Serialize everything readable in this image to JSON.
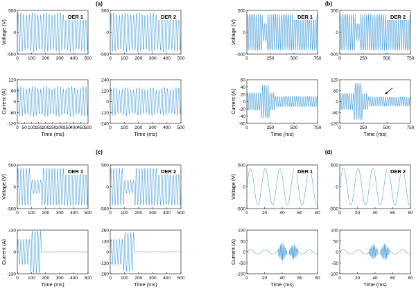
{
  "figure": {
    "panels": [
      {
        "label": "(a)"
      },
      {
        "label": "(b)"
      },
      {
        "label": "(c)"
      },
      {
        "label": "(d)"
      }
    ]
  },
  "chart_data": [
    {
      "type": "line",
      "panel": "(a)",
      "title": "DER 1",
      "xlabel": "",
      "ylabel": "Voltage (V)",
      "xlim": [
        0,
        500
      ],
      "ylim": [
        -500,
        500
      ],
      "x_ticks": [
        "0",
        "100",
        "200",
        "300",
        "400",
        "500"
      ],
      "y_ticks": [
        "500",
        "0",
        "-500"
      ],
      "series": [
        {
          "color": "#4a9fd8",
          "waveform": {
            "kind": "sine",
            "amplitude": 420,
            "period": 20,
            "x_start": 0,
            "x_end": 500,
            "mod_amplitude": 30,
            "mod_period": 90
          }
        }
      ]
    },
    {
      "type": "line",
      "panel": "(a)",
      "title": "DER 2",
      "xlabel": "",
      "ylabel": "",
      "xlim": [
        0,
        500
      ],
      "ylim": [
        -500,
        500
      ],
      "x_ticks": [
        "0",
        "100",
        "200",
        "300",
        "400",
        "500"
      ],
      "y_ticks": [
        "500",
        "0",
        "-500"
      ],
      "series": [
        {
          "color": "#4a9fd8",
          "waveform": {
            "kind": "sine",
            "amplitude": 420,
            "period": 20,
            "x_start": 0,
            "x_end": 500,
            "mod_amplitude": 30,
            "mod_period": 90
          }
        }
      ]
    },
    {
      "type": "line",
      "panel": "(a)",
      "title": "",
      "xlabel": "Time (ms)",
      "ylabel": "Current (A)",
      "xlim": [
        0,
        500
      ],
      "ylim": [
        -120,
        120
      ],
      "x_ticks": [
        "0",
        "50",
        "100",
        "150",
        "200",
        "250",
        "300",
        "350",
        "400",
        "450",
        "500"
      ],
      "y_ticks": [
        "120",
        "60",
        "0",
        "-60",
        "-120"
      ],
      "series": [
        {
          "color": "#4a9fd8",
          "waveform": {
            "kind": "sine",
            "amplitude": 75,
            "period": 20,
            "x_start": 0,
            "x_end": 500,
            "mod_amplitude": 8,
            "mod_period": 90
          }
        }
      ]
    },
    {
      "type": "line",
      "panel": "(a)",
      "title": "",
      "xlabel": "Time (ms)",
      "ylabel": "",
      "xlim": [
        0,
        500
      ],
      "ylim": [
        -240,
        240
      ],
      "x_ticks": [
        "0",
        "100",
        "200",
        "300",
        "400",
        "500"
      ],
      "y_ticks": [
        "240",
        "120",
        "0",
        "-120",
        "-240"
      ],
      "series": [
        {
          "color": "#4a9fd8",
          "waveform": {
            "kind": "sine",
            "amplitude": 140,
            "period": 20,
            "x_start": 0,
            "x_end": 500,
            "mod_amplitude": 15,
            "mod_period": 90
          }
        }
      ]
    },
    {
      "type": "line",
      "panel": "(b)",
      "title": "DER 1",
      "xlabel": "",
      "ylabel": "Voltage (V)",
      "xlim": [
        0,
        750
      ],
      "ylim": [
        -500,
        500
      ],
      "x_ticks": [
        "0",
        "250",
        "500",
        "750"
      ],
      "y_ticks": [
        "500",
        "0",
        "-500"
      ],
      "series": [
        {
          "color": "#4a9fd8",
          "waveform": {
            "kind": "sine",
            "amplitude": 410,
            "period": 20,
            "x_start": 0,
            "x_end": 750,
            "dip_start": 165,
            "dip_end": 215,
            "dip_amplitude": 200
          }
        }
      ]
    },
    {
      "type": "line",
      "panel": "(b)",
      "title": "DER 2",
      "xlabel": "",
      "ylabel": "",
      "xlim": [
        0,
        750
      ],
      "ylim": [
        -500,
        500
      ],
      "x_ticks": [
        "0",
        "250",
        "500",
        "750"
      ],
      "y_ticks": [
        "500",
        "0",
        "-500"
      ],
      "series": [
        {
          "color": "#4a9fd8",
          "waveform": {
            "kind": "sine",
            "amplitude": 410,
            "period": 20,
            "x_start": 0,
            "x_end": 750,
            "dip_start": 165,
            "dip_end": 215,
            "dip_amplitude": 200
          }
        }
      ]
    },
    {
      "type": "line",
      "panel": "(b)",
      "title": "",
      "xlabel": "Time (ms)",
      "ylabel": "Current (A)",
      "xlim": [
        0,
        750
      ],
      "ylim": [
        -60,
        60
      ],
      "x_ticks": [
        "0",
        "250",
        "500",
        "750"
      ],
      "y_ticks": [
        "60",
        "40",
        "20",
        "0",
        "-20",
        "-40",
        "-60"
      ],
      "series": [
        {
          "color": "#4a9fd8",
          "waveform": {
            "kind": "sine",
            "amplitude": 24,
            "period": 20,
            "x_start": 0,
            "x_end": 750,
            "burst_start": 150,
            "burst_end": 240,
            "burst_amplitude": 45,
            "late_amplitude": 14,
            "late_from": 300
          }
        }
      ]
    },
    {
      "type": "line",
      "panel": "(b)",
      "title": "",
      "xlabel": "Time (ms)",
      "ylabel": "",
      "xlim": [
        0,
        750
      ],
      "ylim": [
        -120,
        120
      ],
      "x_ticks": [
        "0",
        "250",
        "500",
        "750"
      ],
      "y_ticks": [
        "120",
        "60",
        "0",
        "-60",
        "-120"
      ],
      "arrow": {
        "from": [
          560,
          75
        ],
        "to": [
          480,
          40
        ]
      },
      "series": [
        {
          "color": "#4a9fd8",
          "waveform": {
            "kind": "sine",
            "amplitude": 45,
            "period": 20,
            "x_start": 0,
            "x_end": 750,
            "burst_start": 150,
            "burst_end": 240,
            "burst_amplitude": 100,
            "late_amplitude": 25,
            "late_from": 300
          }
        }
      ]
    },
    {
      "type": "line",
      "panel": "(c)",
      "title": "DER 1",
      "xlabel": "",
      "ylabel": "Voltage (V)",
      "xlim": [
        0,
        500
      ],
      "ylim": [
        -500,
        500
      ],
      "x_ticks": [
        "0",
        "100",
        "200",
        "300",
        "400",
        "500"
      ],
      "y_ticks": [
        "500",
        "0",
        "-500"
      ],
      "series": [
        {
          "color": "#4a9fd8",
          "waveform": {
            "kind": "sine",
            "amplitude": 420,
            "period": 20,
            "x_start": 0,
            "x_end": 500,
            "dip_start": 95,
            "dip_end": 170,
            "dip_amplitude": 150
          }
        }
      ]
    },
    {
      "type": "line",
      "panel": "(c)",
      "title": "DER 2",
      "xlabel": "",
      "ylabel": "",
      "xlim": [
        0,
        500
      ],
      "ylim": [
        -500,
        500
      ],
      "x_ticks": [
        "0",
        "100",
        "200",
        "300",
        "400",
        "500"
      ],
      "y_ticks": [
        "500",
        "0",
        "-500"
      ],
      "series": [
        {
          "color": "#4a9fd8",
          "waveform": {
            "kind": "sine",
            "amplitude": 420,
            "period": 20,
            "x_start": 0,
            "x_end": 500,
            "dip_start": 95,
            "dip_end": 170,
            "dip_amplitude": 150
          }
        }
      ]
    },
    {
      "type": "line",
      "panel": "(c)",
      "title": "",
      "xlabel": "Time (ms)",
      "ylabel": "Current (A)",
      "xlim": [
        0,
        500
      ],
      "ylim": [
        -130,
        130
      ],
      "x_ticks": [
        "0",
        "100",
        "200",
        "300",
        "400",
        "500"
      ],
      "y_ticks": [
        "130",
        "0",
        "-130"
      ],
      "series": [
        {
          "color": "#4a9fd8",
          "waveform": {
            "kind": "sine",
            "amplitude": 75,
            "period": 20,
            "x_start": 0,
            "x_end": 500,
            "burst_start": 95,
            "burst_end": 170,
            "burst_amplitude": 125,
            "late_amplitude": 1,
            "late_from": 170
          }
        }
      ]
    },
    {
      "type": "line",
      "panel": "(c)",
      "title": "",
      "xlabel": "Time (ms)",
      "ylabel": "",
      "xlim": [
        0,
        500
      ],
      "ylim": [
        -260,
        260
      ],
      "x_ticks": [
        "0",
        "100",
        "200",
        "300",
        "400",
        "500"
      ],
      "y_ticks": [
        "260",
        "130",
        "0",
        "-130",
        "-260"
      ],
      "series": [
        {
          "color": "#4a9fd8",
          "waveform": {
            "kind": "sine",
            "amplitude": 150,
            "period": 20,
            "x_start": 0,
            "x_end": 500,
            "burst_start": 95,
            "burst_end": 170,
            "burst_amplitude": 230,
            "late_amplitude": 2,
            "late_from": 170
          }
        }
      ]
    },
    {
      "type": "line",
      "panel": "(d)",
      "title": "DER 1",
      "xlabel": "",
      "ylabel": "Voltage (V)",
      "xlim": [
        0,
        80
      ],
      "ylim": [
        -500,
        500
      ],
      "x_ticks": [
        "0",
        "20",
        "40",
        "60",
        "80"
      ],
      "y_ticks": [
        "500",
        "0",
        "-500"
      ],
      "series": [
        {
          "color": "#4a9fd8",
          "waveform": {
            "kind": "sine",
            "amplitude": 420,
            "period": 16.67,
            "x_start": 0,
            "x_end": 80
          }
        }
      ]
    },
    {
      "type": "line",
      "panel": "(d)",
      "title": "DER 2",
      "xlabel": "",
      "ylabel": "",
      "xlim": [
        0,
        80
      ],
      "ylim": [
        -500,
        500
      ],
      "x_ticks": [
        "0",
        "20",
        "40",
        "60",
        "80"
      ],
      "y_ticks": [
        "500",
        "0",
        "-500"
      ],
      "series": [
        {
          "color": "#4a9fd8",
          "waveform": {
            "kind": "sine",
            "amplitude": 420,
            "period": 16.67,
            "x_start": 0,
            "x_end": 80
          }
        }
      ]
    },
    {
      "type": "line",
      "panel": "(d)",
      "title": "",
      "xlabel": "Time (ms)",
      "ylabel": "Current (A)",
      "xlim": [
        0,
        80
      ],
      "ylim": [
        -100,
        100
      ],
      "x_ticks": [
        "0",
        "20",
        "40",
        "60",
        "80"
      ],
      "y_ticks": [
        "100",
        "50",
        "0",
        "-50",
        "-100"
      ],
      "series": [
        {
          "color": "#4a9fd8",
          "waveform": {
            "kind": "sine",
            "amplitude": 10,
            "period": 16.67,
            "x_start": 0,
            "x_end": 80,
            "bursts": [
              [
                35,
                45,
                45
              ],
              [
                48,
                58,
                35
              ]
            ]
          }
        }
      ]
    },
    {
      "type": "line",
      "panel": "(d)",
      "title": "",
      "xlabel": "Time (ms)",
      "ylabel": "",
      "xlim": [
        0,
        80
      ],
      "ylim": [
        -100,
        100
      ],
      "x_ticks": [
        "0",
        "20",
        "40",
        "60",
        "80"
      ],
      "y_ticks": [
        "100",
        "50",
        "0",
        "-50",
        "-100"
      ],
      "series": [
        {
          "color": "#4a9fd8",
          "waveform": {
            "kind": "sine",
            "amplitude": 10,
            "period": 16.67,
            "x_start": 0,
            "x_end": 80,
            "bursts": [
              [
                33,
                43,
                35
              ],
              [
                46,
                56,
                40
              ]
            ]
          }
        }
      ]
    }
  ]
}
